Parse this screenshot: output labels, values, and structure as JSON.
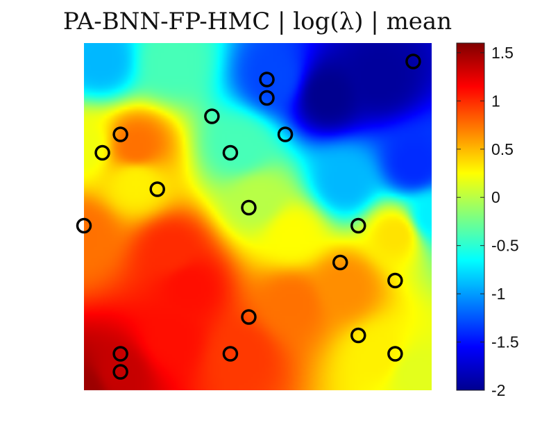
{
  "chart_data": {
    "type": "heatmap",
    "title": "PA-BNN-FP-HMC |  log(λ) | mean",
    "xlabel": "",
    "ylabel": "",
    "xlim": [
      0,
      1
    ],
    "ylim": [
      0,
      1
    ],
    "axes_visible": false,
    "grid": false,
    "colormap": "jet",
    "colorbar": {
      "position": "right",
      "limits": [
        -2,
        1.6
      ],
      "ticks": [
        1.5,
        1,
        0.5,
        0,
        -0.5,
        -1,
        -1.5,
        -2
      ],
      "tick_labels": [
        "1.5",
        "1",
        "0.5",
        "0",
        "-0.5",
        "-1",
        "-1.5",
        "-2"
      ]
    },
    "field_control_points": [
      {
        "x": 0.0,
        "y": 0.0,
        "v": 1.5
      },
      {
        "x": 0.1,
        "y": 0.05,
        "v": 1.35
      },
      {
        "x": 0.3,
        "y": 0.3,
        "v": 1.1
      },
      {
        "x": 0.25,
        "y": 0.15,
        "v": 1.1
      },
      {
        "x": 0.45,
        "y": 0.1,
        "v": 0.95
      },
      {
        "x": 0.6,
        "y": 0.25,
        "v": 0.75
      },
      {
        "x": 0.75,
        "y": 0.3,
        "v": 0.65
      },
      {
        "x": 0.85,
        "y": 0.1,
        "v": 0.3
      },
      {
        "x": 0.95,
        "y": 0.05,
        "v": 0.15
      },
      {
        "x": 0.9,
        "y": 0.45,
        "v": 0.35
      },
      {
        "x": 0.0,
        "y": 0.45,
        "v": 0.75
      },
      {
        "x": 0.15,
        "y": 0.6,
        "v": 0.3
      },
      {
        "x": 0.15,
        "y": 0.7,
        "v": 0.75
      },
      {
        "x": 0.0,
        "y": 0.7,
        "v": 0.2
      },
      {
        "x": 0.05,
        "y": 0.95,
        "v": -0.9
      },
      {
        "x": 0.25,
        "y": 0.95,
        "v": -0.4
      },
      {
        "x": 0.45,
        "y": 0.7,
        "v": -0.4
      },
      {
        "x": 0.5,
        "y": 0.55,
        "v": 0.0
      },
      {
        "x": 0.55,
        "y": 0.9,
        "v": -1.3
      },
      {
        "x": 0.7,
        "y": 0.85,
        "v": -1.95
      },
      {
        "x": 0.85,
        "y": 0.9,
        "v": -1.9
      },
      {
        "x": 0.95,
        "y": 0.65,
        "v": -1.4
      },
      {
        "x": 1.0,
        "y": 0.5,
        "v": -0.7
      },
      {
        "x": 0.75,
        "y": 0.6,
        "v": -0.9
      },
      {
        "x": 0.25,
        "y": 0.4,
        "v": 1.0
      },
      {
        "x": 0.6,
        "y": 0.45,
        "v": 0.25
      }
    ],
    "markers": {
      "shape": "open-circle",
      "edge_color": "#000000",
      "points": [
        {
          "x": 0.947,
          "y": 0.947
        },
        {
          "x": 0.526,
          "y": 0.895
        },
        {
          "x": 0.526,
          "y": 0.842
        },
        {
          "x": 0.368,
          "y": 0.789
        },
        {
          "x": 0.579,
          "y": 0.737
        },
        {
          "x": 0.105,
          "y": 0.737
        },
        {
          "x": 0.053,
          "y": 0.684
        },
        {
          "x": 0.421,
          "y": 0.684
        },
        {
          "x": 0.211,
          "y": 0.579
        },
        {
          "x": 0.474,
          "y": 0.526
        },
        {
          "x": 0.0,
          "y": 0.474
        },
        {
          "x": 0.789,
          "y": 0.474
        },
        {
          "x": 0.737,
          "y": 0.368
        },
        {
          "x": 0.895,
          "y": 0.316
        },
        {
          "x": 0.474,
          "y": 0.211
        },
        {
          "x": 0.789,
          "y": 0.158
        },
        {
          "x": 0.105,
          "y": 0.105
        },
        {
          "x": 0.421,
          "y": 0.105
        },
        {
          "x": 0.895,
          "y": 0.105
        },
        {
          "x": 0.105,
          "y": 0.053
        }
      ]
    }
  }
}
